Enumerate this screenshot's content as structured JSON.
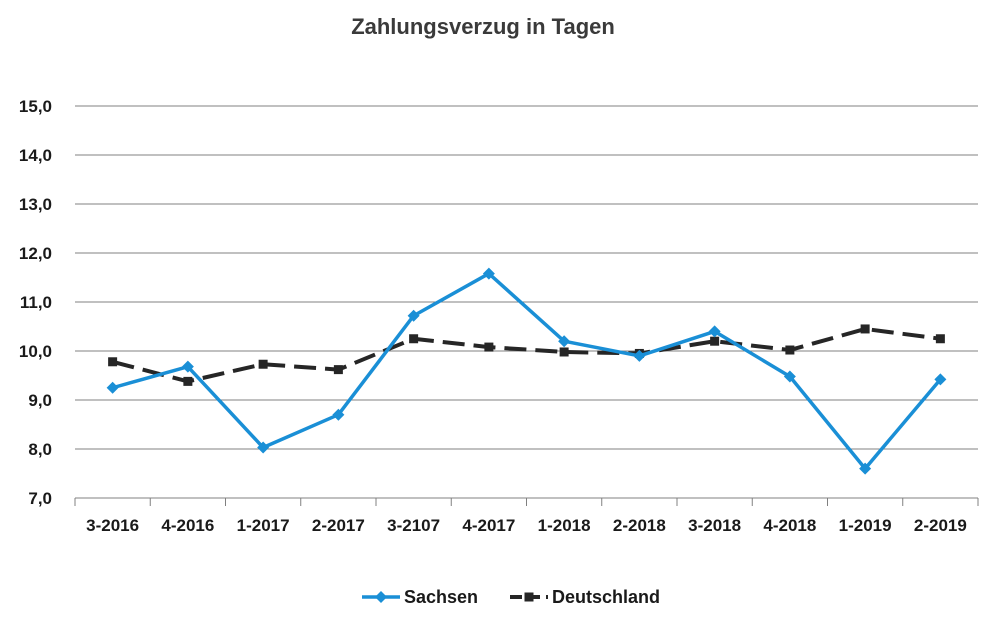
{
  "chart_data": {
    "type": "line",
    "title": "Zahlungsverzug in Tagen",
    "xlabel": "",
    "ylabel": "",
    "categories": [
      "3-2016",
      "4-2016",
      "1-2017",
      "2-2017",
      "3-2107",
      "4-2017",
      "1-2018",
      "2-2018",
      "3-2018",
      "4-2018",
      "1-2019",
      "2-2019"
    ],
    "ylim": [
      7.0,
      15.0
    ],
    "yticks": [
      "7,0",
      "8,0",
      "9,0",
      "10,0",
      "11,0",
      "12,0",
      "13,0",
      "14,0",
      "15,0"
    ],
    "grid": true,
    "legend_position": "bottom",
    "series": [
      {
        "name": "Sachsen",
        "color": "#1a8fd6",
        "marker": "diamond",
        "line_style": "solid",
        "values": [
          9.25,
          9.68,
          8.03,
          8.7,
          10.72,
          11.58,
          10.2,
          9.9,
          10.4,
          9.48,
          7.6,
          9.42
        ]
      },
      {
        "name": "Deutschland",
        "color": "#262626",
        "marker": "square",
        "line_style": "dashed",
        "values": [
          9.78,
          9.38,
          9.73,
          9.62,
          10.25,
          10.08,
          9.98,
          9.95,
          10.2,
          10.02,
          10.45,
          10.25
        ]
      }
    ]
  }
}
